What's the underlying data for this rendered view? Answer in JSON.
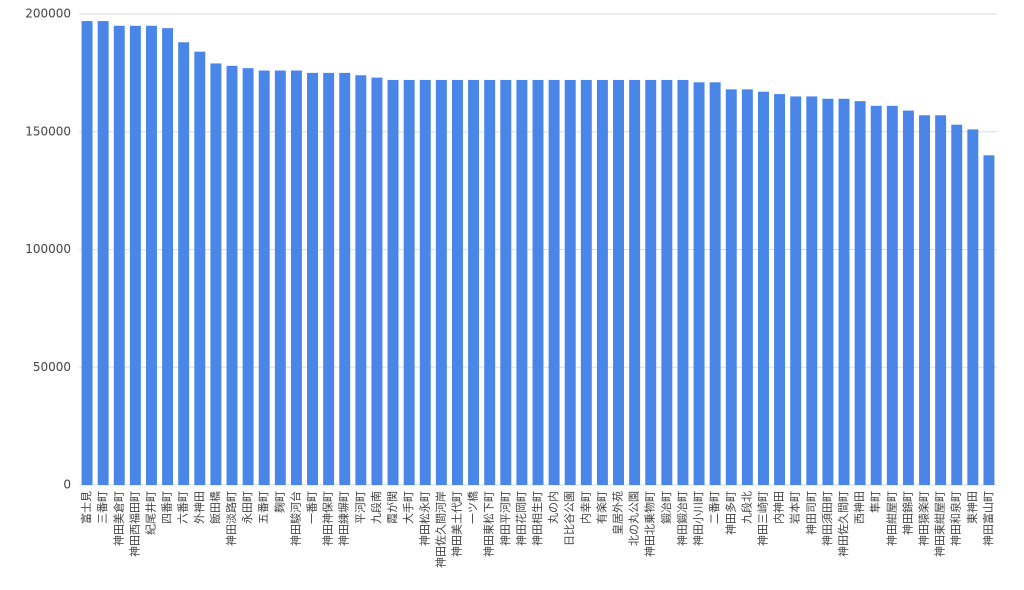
{
  "chart_data": {
    "type": "bar",
    "categories": [
      "富士見",
      "三番町",
      "神田美倉町",
      "神田西福田町",
      "紀尾井町",
      "四番町",
      "六番町",
      "外神田",
      "飯田橋",
      "神田淡路町",
      "永田町",
      "五番町",
      "麹町",
      "神田駿河台",
      "一番町",
      "神田神保町",
      "神田練塀町",
      "平河町",
      "九段南",
      "霞が関",
      "大手町",
      "神田松永町",
      "神田佐久間河岸",
      "神田美土代町",
      "一ツ橋",
      "神田東松下町",
      "神田平河町",
      "神田花岡町",
      "神田相生町",
      "丸の内",
      "日比谷公園",
      "内幸町",
      "有楽町",
      "皇居外苑",
      "北の丸公園",
      "神田北乗物町",
      "鍛冶町",
      "神田鍛冶町",
      "神田小川町",
      "二番町",
      "神田多町",
      "九段北",
      "神田三崎町",
      "内神田",
      "岩本町",
      "神田司町",
      "神田須田町",
      "神田佐久間町",
      "西神田",
      "隼町",
      "神田紺屋町",
      "神田錦町",
      "神田猿楽町",
      "神田東紺屋町",
      "神田和泉町",
      "東神田",
      "神田富山町"
    ],
    "values": [
      197000,
      197000,
      195000,
      195000,
      195000,
      194000,
      188000,
      184000,
      179000,
      178000,
      177000,
      176000,
      176000,
      176000,
      175000,
      175000,
      175000,
      174000,
      173000,
      172000,
      172000,
      172000,
      172000,
      172000,
      172000,
      172000,
      172000,
      172000,
      172000,
      172000,
      172000,
      172000,
      172000,
      172000,
      172000,
      172000,
      172000,
      172000,
      171000,
      171000,
      168000,
      168000,
      167000,
      166000,
      165000,
      165000,
      164000,
      164000,
      163000,
      161000,
      161000,
      159000,
      157000,
      157000,
      153000,
      151000,
      140000
    ],
    "color": "#4a86e8",
    "ylim": [
      0,
      200000
    ],
    "yticks": [
      0,
      50000,
      100000,
      150000,
      200000
    ],
    "grid": true
  }
}
